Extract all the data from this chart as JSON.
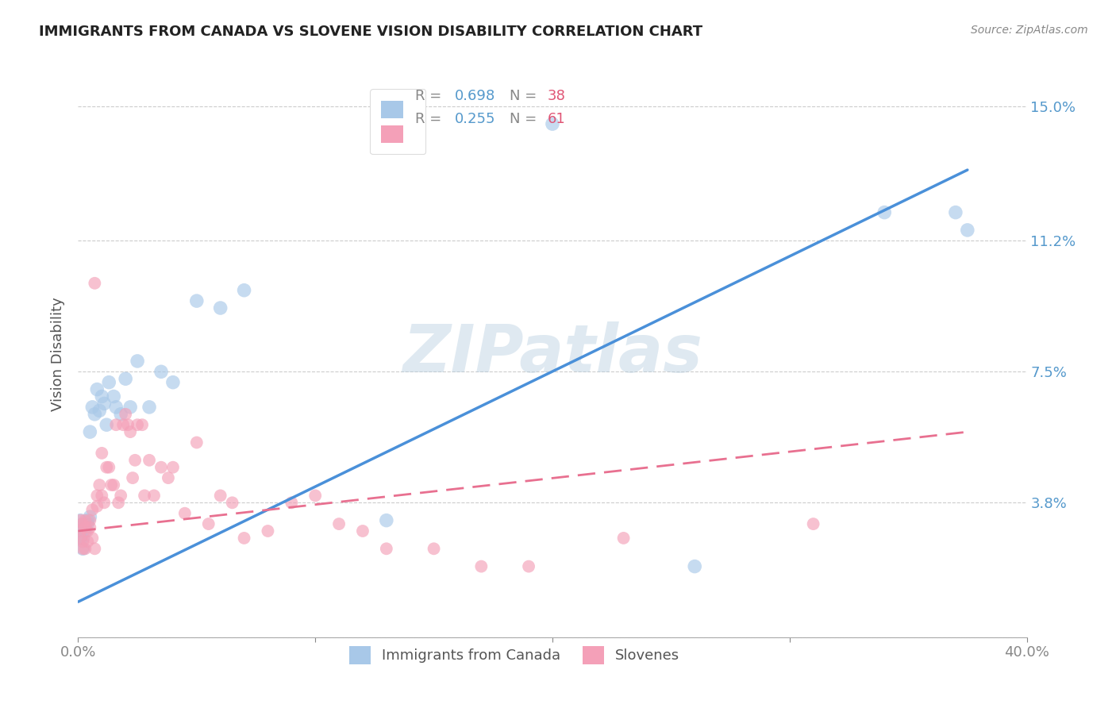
{
  "title": "IMMIGRANTS FROM CANADA VS SLOVENE VISION DISABILITY CORRELATION CHART",
  "source": "Source: ZipAtlas.com",
  "ylabel": "Vision Disability",
  "xlim": [
    0.0,
    0.4
  ],
  "ylim": [
    0.0,
    0.16
  ],
  "yticks": [
    0.0,
    0.038,
    0.075,
    0.112,
    0.15
  ],
  "ytick_labels": [
    "",
    "3.8%",
    "7.5%",
    "11.2%",
    "15.0%"
  ],
  "xticks": [
    0.0,
    0.1,
    0.2,
    0.3,
    0.4
  ],
  "xtick_labels": [
    "0.0%",
    "",
    "",
    "",
    "40.0%"
  ],
  "legend_r1": "R = 0.698",
  "legend_n1": "N = 38",
  "legend_r2": "R = 0.255",
  "legend_n2": "N = 61",
  "color_blue": "#a8c8e8",
  "color_pink": "#f4a0b8",
  "color_blue_line": "#4a90d9",
  "color_pink_line": "#e87090",
  "watermark": "ZIPatlas",
  "canada_x": [
    0.001,
    0.001,
    0.001,
    0.002,
    0.002,
    0.002,
    0.003,
    0.003,
    0.004,
    0.004,
    0.005,
    0.005,
    0.006,
    0.007,
    0.008,
    0.009,
    0.01,
    0.011,
    0.012,
    0.013,
    0.015,
    0.016,
    0.018,
    0.02,
    0.022,
    0.025,
    0.03,
    0.035,
    0.04,
    0.05,
    0.06,
    0.07,
    0.13,
    0.2,
    0.26,
    0.34,
    0.37,
    0.375
  ],
  "canada_y": [
    0.028,
    0.03,
    0.033,
    0.025,
    0.032,
    0.028,
    0.031,
    0.03,
    0.033,
    0.032,
    0.034,
    0.058,
    0.065,
    0.063,
    0.07,
    0.064,
    0.068,
    0.066,
    0.06,
    0.072,
    0.068,
    0.065,
    0.063,
    0.073,
    0.065,
    0.078,
    0.065,
    0.075,
    0.072,
    0.095,
    0.093,
    0.098,
    0.033,
    0.145,
    0.02,
    0.12,
    0.12,
    0.115
  ],
  "slovene_x": [
    0.001,
    0.001,
    0.001,
    0.002,
    0.002,
    0.002,
    0.003,
    0.003,
    0.003,
    0.004,
    0.004,
    0.005,
    0.005,
    0.006,
    0.006,
    0.007,
    0.007,
    0.008,
    0.008,
    0.009,
    0.01,
    0.01,
    0.011,
    0.012,
    0.013,
    0.014,
    0.015,
    0.016,
    0.017,
    0.018,
    0.019,
    0.02,
    0.021,
    0.022,
    0.023,
    0.024,
    0.025,
    0.027,
    0.028,
    0.03,
    0.032,
    0.035,
    0.038,
    0.04,
    0.045,
    0.05,
    0.055,
    0.06,
    0.065,
    0.07,
    0.08,
    0.09,
    0.1,
    0.11,
    0.12,
    0.13,
    0.15,
    0.17,
    0.19,
    0.23,
    0.31
  ],
  "slovene_y": [
    0.028,
    0.03,
    0.033,
    0.025,
    0.032,
    0.027,
    0.025,
    0.031,
    0.033,
    0.027,
    0.03,
    0.033,
    0.031,
    0.028,
    0.036,
    0.025,
    0.1,
    0.037,
    0.04,
    0.043,
    0.04,
    0.052,
    0.038,
    0.048,
    0.048,
    0.043,
    0.043,
    0.06,
    0.038,
    0.04,
    0.06,
    0.063,
    0.06,
    0.058,
    0.045,
    0.05,
    0.06,
    0.06,
    0.04,
    0.05,
    0.04,
    0.048,
    0.045,
    0.048,
    0.035,
    0.055,
    0.032,
    0.04,
    0.038,
    0.028,
    0.03,
    0.038,
    0.04,
    0.032,
    0.03,
    0.025,
    0.025,
    0.02,
    0.02,
    0.028,
    0.032
  ],
  "blue_line_x": [
    0.0,
    0.375
  ],
  "blue_line_y": [
    0.01,
    0.132
  ],
  "pink_line_x": [
    0.0,
    0.375
  ],
  "pink_line_y": [
    0.03,
    0.058
  ]
}
